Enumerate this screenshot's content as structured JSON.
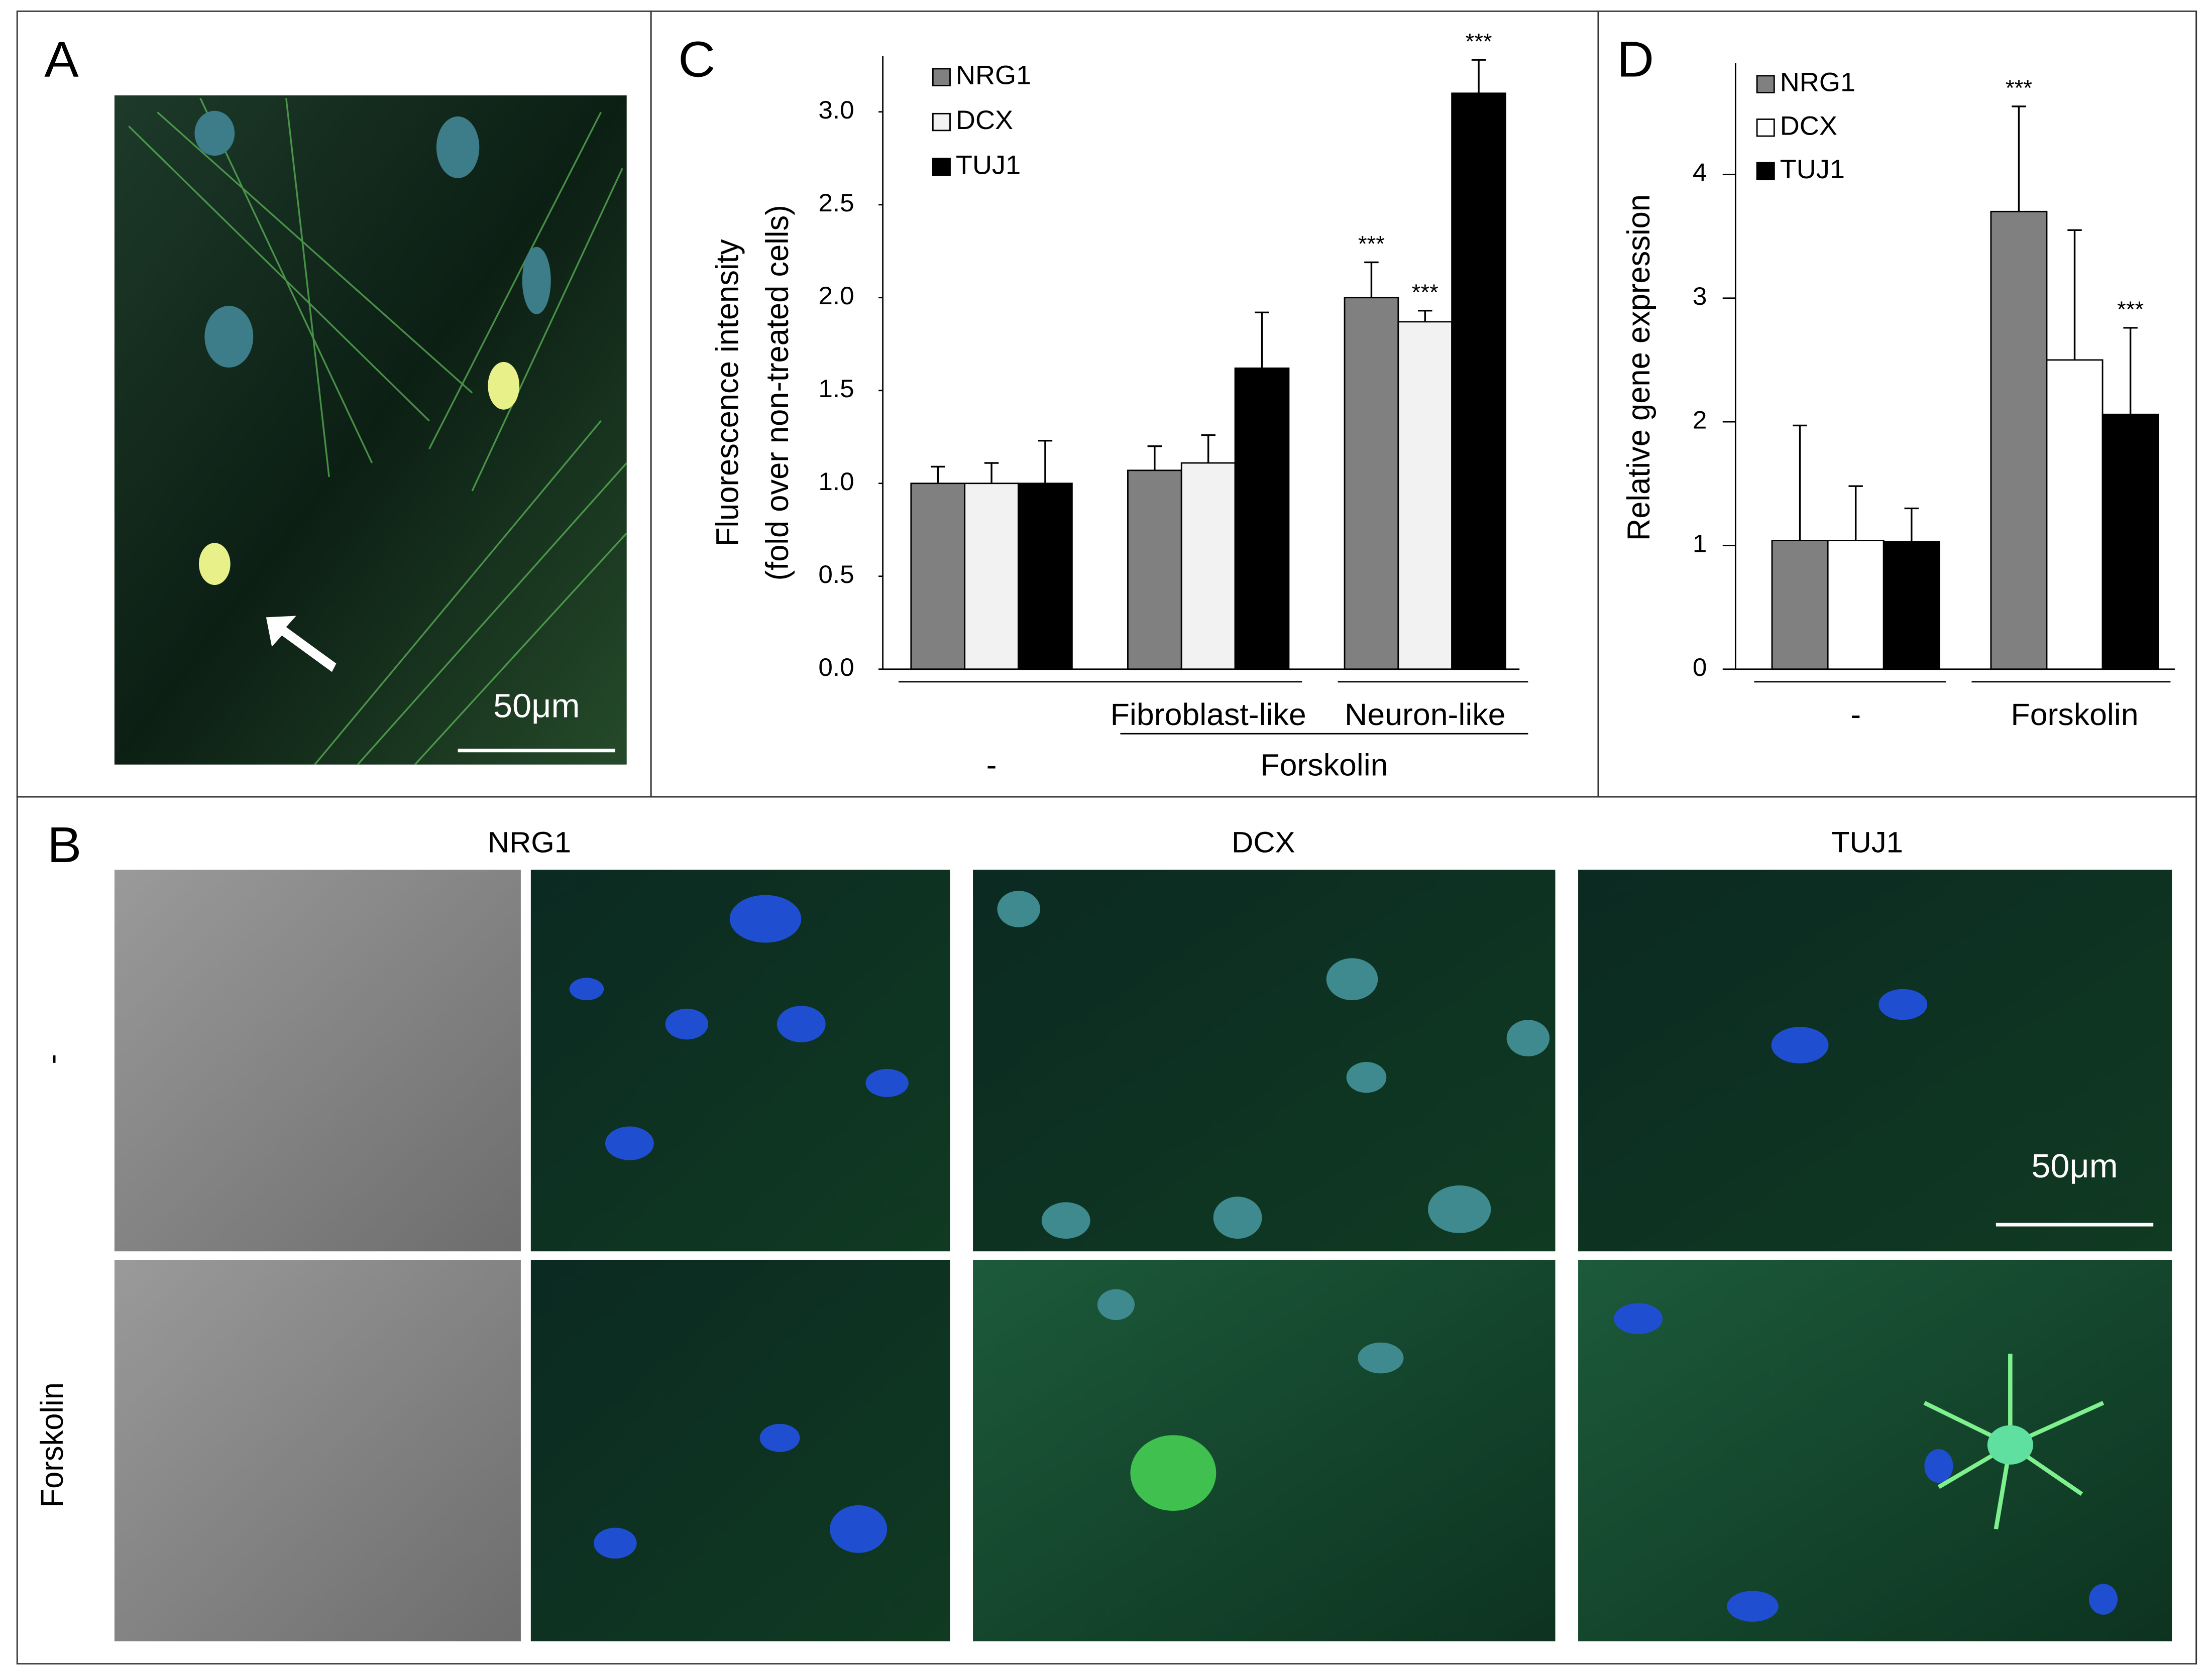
{
  "figure": {
    "panel_a": {
      "label": "A",
      "scale_bar": "50μm"
    },
    "panel_b": {
      "label": "B",
      "columns": [
        "NRG1",
        "DCX",
        "TUJ1"
      ],
      "rows": [
        "-",
        "Forskolin"
      ],
      "scale_bar": "50μm"
    }
  },
  "chart_data": [
    {
      "type": "bar",
      "label": "C",
      "ylabel": [
        "Fluorescence intensity",
        "(fold over non-treated cells)"
      ],
      "categories": [
        "-",
        "Fibroblast-like",
        "Neuron-like"
      ],
      "group_label": "Forskolin",
      "series": [
        {
          "name": "NRG1",
          "color": "#808080",
          "values": [
            1.0,
            1.07,
            2.0
          ],
          "errors": [
            0.09,
            0.13,
            0.19
          ],
          "significance": [
            null,
            null,
            "***"
          ]
        },
        {
          "name": "DCX",
          "color": "#f2f2f2",
          "values": [
            1.0,
            1.11,
            1.87
          ],
          "errors": [
            0.11,
            0.15,
            0.06
          ],
          "significance": [
            null,
            null,
            "***"
          ]
        },
        {
          "name": "TUJ1",
          "color": "#000000",
          "values": [
            1.0,
            1.62,
            3.1
          ],
          "errors": [
            0.23,
            0.3,
            0.18
          ],
          "significance": [
            null,
            null,
            "***"
          ]
        }
      ],
      "ylim": [
        0,
        3.3
      ],
      "yticks": [
        {
          "value": 0,
          "label": "0.0"
        },
        {
          "value": 0.5,
          "label": "0.5"
        },
        {
          "value": 1,
          "label": "1.0"
        },
        {
          "value": 1.5,
          "label": "1.5"
        },
        {
          "value": 2,
          "label": "2.0"
        },
        {
          "value": 2.5,
          "label": "2.5"
        },
        {
          "value": 3,
          "label": "3.0"
        }
      ],
      "grid": false
    },
    {
      "type": "bar",
      "label": "D",
      "ylabel": [
        "Relative gene expression"
      ],
      "categories": [
        "-",
        "Forskolin"
      ],
      "series": [
        {
          "name": "NRG1",
          "color": "#808080",
          "values": [
            1.04,
            3.7
          ],
          "errors": [
            0.93,
            0.85
          ],
          "significance": [
            null,
            "***"
          ]
        },
        {
          "name": "DCX",
          "color": "#ffffff",
          "values": [
            1.04,
            2.5
          ],
          "errors": [
            0.44,
            1.05
          ],
          "significance": [
            null,
            null
          ]
        },
        {
          "name": "TUJ1",
          "color": "#000000",
          "values": [
            1.03,
            2.06
          ],
          "errors": [
            0.27,
            0.7
          ],
          "significance": [
            null,
            "***"
          ]
        }
      ],
      "ylim": [
        0,
        4.9
      ],
      "yticks": [
        0,
        1,
        2,
        3,
        4
      ],
      "grid": false
    }
  ]
}
